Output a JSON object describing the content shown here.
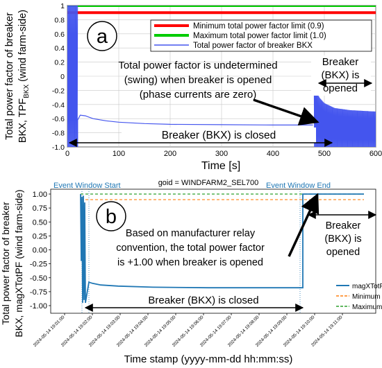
{
  "chart_data": [
    {
      "panel": "a",
      "type": "line",
      "ylabel_line1": "Total power factor of breaker",
      "ylabel_line2": "BKX, TPF",
      "ylabel_sub": "BKX",
      "ylabel_tail": " (wind farm-side)",
      "xlabel": "Time [s]",
      "xlim": [
        0,
        600
      ],
      "ylim": [
        -1.0,
        1.0
      ],
      "xticks": [
        "0",
        "100",
        "200",
        "300",
        "400",
        "500",
        "600"
      ],
      "yticks": [
        "1",
        "0.8",
        "0.6",
        "0.4",
        "0.2",
        "0",
        "-0.2",
        "-0.4",
        "-0.6",
        "-0.8",
        "-1.0"
      ],
      "grid": true,
      "legend_position": "top-right",
      "series": [
        {
          "name": "Minimum total power factor limit (0.9)",
          "color": "#ff0000",
          "x": [
            0,
            600
          ],
          "y": [
            0.9,
            0.9
          ]
        },
        {
          "name": "Maximum total power factor limit (1.0)",
          "color": "#00cc00",
          "x": [
            0,
            600
          ],
          "y": [
            1.0,
            1.0
          ]
        },
        {
          "name": "Total power factor of breaker BKX",
          "color": "#4455ee",
          "x": [
            20,
            25,
            35,
            50,
            75,
            100,
            150,
            200,
            300,
            400,
            478,
            480,
            490,
            500,
            520,
            550,
            600
          ],
          "y": [
            -0.62,
            -0.55,
            -0.56,
            -0.6,
            -0.63,
            -0.65,
            -0.67,
            -0.68,
            -0.685,
            -0.69,
            -0.69,
            -0.1,
            -0.3,
            -0.38,
            -0.45,
            -0.48,
            -0.5
          ]
        }
      ],
      "annotations": {
        "panel_label": "a",
        "swing_text": [
          "Total power factor is  undetermined",
          "(swing) when breaker is opened",
          "(phase currents are zero)"
        ],
        "opened_text": [
          "Breaker",
          "(BKX) is",
          "opened"
        ],
        "closed_text": "Breaker (BKX) is closed"
      }
    },
    {
      "panel": "b",
      "type": "line",
      "title": "goid = WINDFARM2_SEL700",
      "ylabel_line1": "Total power factor of breaker",
      "ylabel_line2": "BKX, magXTotPF (wind farm-side)",
      "xlabel": "Time stamp (yyyy-mm-dd hh:mm:ss)",
      "ylim": [
        -1.0,
        1.0
      ],
      "yticks": [
        "1.00",
        "0.75",
        "0.50",
        "0.25",
        "0.00",
        "-0.25",
        "-0.50",
        "-0.75",
        "-1.00"
      ],
      "xticks": [
        "2024-05-14 19:01:00",
        "2024-05-14 19:02:00",
        "2024-05-14 19:03:00",
        "2024-05-14 19:04:00",
        "2024-05-14 19:05:00",
        "2024-05-14 19:06:00",
        "2024-05-14 19:07:00",
        "2024-05-14 19:08:00",
        "2024-05-14 19:09:00",
        "2024-05-14 19:10:00",
        "2024-05-14 19:11:00"
      ],
      "grid": false,
      "legend_position": "bottom-right",
      "series": [
        {
          "name": "magXTotPF",
          "color": "#1f77b4"
        },
        {
          "name": "Minimum",
          "color": "#ff7f0e",
          "y": 0.9
        },
        {
          "name": "Maximum",
          "color": "#2ca02c",
          "y": 1.0
        }
      ],
      "annotations": {
        "panel_label": "b",
        "event_start": "Event Window Start",
        "event_end": "Event Window End",
        "relay_text": [
          "Based on manufacturer relay",
          "convention, the total power factor",
          "is +1.00 when breaker is opened"
        ],
        "opened_text": [
          "Breaker",
          "(BKX) is",
          "opened"
        ],
        "closed_text": "Breaker (BKX) is closed"
      }
    }
  ]
}
